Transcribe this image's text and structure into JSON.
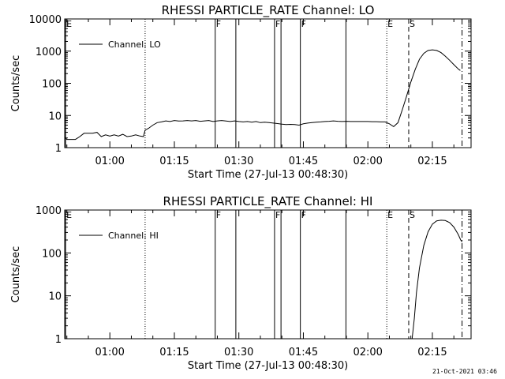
{
  "footer_timestamp": "21-Oct-2021 03:46",
  "chart_data": [
    {
      "type": "line",
      "title": "RHESSI PARTICLE_RATE Channel: LO",
      "xlabel": "Start Time (27-Jul-13 00:48:30)",
      "ylabel": "Counts/sec",
      "yscale": "log",
      "ylim": [
        1,
        10000
      ],
      "xlim": [
        49.5,
        144
      ],
      "x_tick_labels": [
        "01:00",
        "01:15",
        "01:30",
        "01:45",
        "02:00",
        "02:15"
      ],
      "y_tick_labels": [
        "1",
        "10",
        "100",
        "1000",
        "10000"
      ],
      "legend": {
        "label": "Channel: LO",
        "position": "top-left"
      },
      "series": [
        {
          "name": "Channel: LO",
          "points": [
            [
              49.5,
              2.2
            ],
            [
              50,
              1.8
            ],
            [
              51,
              1.8
            ],
            [
              52,
              1.8
            ],
            [
              53,
              2.2
            ],
            [
              54,
              2.8
            ],
            [
              55,
              2.8
            ],
            [
              56,
              2.8
            ],
            [
              57,
              3
            ],
            [
              58,
              2.2
            ],
            [
              59,
              2.5
            ],
            [
              60,
              2.3
            ],
            [
              61,
              2.5
            ],
            [
              62,
              2.3
            ],
            [
              63,
              2.6
            ],
            [
              64,
              2.2
            ],
            [
              65,
              2.3
            ],
            [
              66,
              2.5
            ],
            [
              67,
              2.3
            ],
            [
              67.8,
              2.2
            ],
            [
              68.2,
              3.5
            ],
            [
              69,
              4
            ],
            [
              70,
              5
            ],
            [
              71,
              6
            ],
            [
              72,
              6.3
            ],
            [
              73,
              6.8
            ],
            [
              74,
              6.5
            ],
            [
              75,
              7
            ],
            [
              76,
              6.7
            ],
            [
              77,
              6.8
            ],
            [
              78,
              7
            ],
            [
              79,
              6.8
            ],
            [
              80,
              7
            ],
            [
              81,
              6.6
            ],
            [
              82,
              6.8
            ],
            [
              83,
              7
            ],
            [
              84,
              6.5
            ],
            [
              85,
              6.8
            ],
            [
              86,
              7
            ],
            [
              87,
              6.7
            ],
            [
              88,
              6.5
            ],
            [
              89,
              6.8
            ],
            [
              90,
              6.5
            ],
            [
              91,
              6.3
            ],
            [
              92,
              6.5
            ],
            [
              93,
              6.2
            ],
            [
              94,
              6.5
            ],
            [
              95,
              6
            ],
            [
              96,
              6.2
            ],
            [
              97,
              6
            ],
            [
              98,
              5.8
            ],
            [
              99,
              5.6
            ],
            [
              100,
              5.4
            ],
            [
              101,
              5.2
            ],
            [
              102,
              5.3
            ],
            [
              103,
              5.2
            ],
            [
              104,
              5
            ],
            [
              105,
              5.5
            ],
            [
              106,
              5.8
            ],
            [
              107,
              6
            ],
            [
              108,
              6.2
            ],
            [
              109,
              6.3
            ],
            [
              110,
              6.5
            ],
            [
              111,
              6.6
            ],
            [
              112,
              6.8
            ],
            [
              113,
              6.6
            ],
            [
              114,
              6.5
            ],
            [
              115,
              6.6
            ],
            [
              116,
              6.5
            ],
            [
              117,
              6.5
            ],
            [
              118,
              6.5
            ],
            [
              119,
              6.5
            ],
            [
              120,
              6.5
            ],
            [
              121,
              6.4
            ],
            [
              122,
              6.4
            ],
            [
              123,
              6.3
            ],
            [
              124,
              6.3
            ],
            [
              125,
              5.5
            ],
            [
              126,
              4.5
            ],
            [
              127,
              6
            ],
            [
              128,
              15
            ],
            [
              129,
              40
            ],
            [
              130,
              110
            ],
            [
              131,
              270
            ],
            [
              132,
              560
            ],
            [
              133,
              850
            ],
            [
              134,
              1050
            ],
            [
              135,
              1100
            ],
            [
              136,
              1050
            ],
            [
              137,
              900
            ],
            [
              138,
              700
            ],
            [
              139,
              520
            ],
            [
              140,
              380
            ],
            [
              141,
              280
            ],
            [
              141.5,
              250
            ]
          ]
        }
      ],
      "event_lines": [
        {
          "label": "E",
          "x": 49.7,
          "style": "solid"
        },
        {
          "label": "",
          "x": 68.2,
          "style": "dotted"
        },
        {
          "label": "F",
          "x": 84.5,
          "style": "solid"
        },
        {
          "label": "",
          "x": 89.3,
          "style": "solid"
        },
        {
          "label": "F",
          "x": 98.3,
          "style": "solid"
        },
        {
          "label": "",
          "x": 99.8,
          "style": "solid"
        },
        {
          "label": "F",
          "x": 104.3,
          "style": "solid"
        },
        {
          "label": "",
          "x": 114.9,
          "style": "solid"
        },
        {
          "label": "E",
          "x": 124.4,
          "style": "dotted"
        },
        {
          "label": "S",
          "x": 129.5,
          "style": "dashed"
        },
        {
          "label": "",
          "x": 141.9,
          "style": "dashdot"
        }
      ]
    },
    {
      "type": "line",
      "title": "RHESSI PARTICLE_RATE Channel: HI",
      "xlabel": "Start Time (27-Jul-13 00:48:30)",
      "ylabel": "Counts/sec",
      "yscale": "log",
      "ylim": [
        1,
        1000
      ],
      "xlim": [
        49.5,
        144
      ],
      "x_tick_labels": [
        "01:00",
        "01:15",
        "01:30",
        "01:45",
        "02:00",
        "02:15"
      ],
      "y_tick_labels": [
        "1",
        "10",
        "100",
        "1000"
      ],
      "legend": {
        "label": "Channel: HI",
        "position": "top-left"
      },
      "series": [
        {
          "name": "Channel: HI",
          "points": [
            [
              130.3,
              1
            ],
            [
              130.8,
              3
            ],
            [
              131.3,
              12
            ],
            [
              132,
              45
            ],
            [
              133,
              150
            ],
            [
              134,
              310
            ],
            [
              135,
              470
            ],
            [
              136,
              560
            ],
            [
              137,
              580
            ],
            [
              138,
              570
            ],
            [
              139,
              510
            ],
            [
              140,
              400
            ],
            [
              141,
              270
            ],
            [
              141.6,
              200
            ],
            [
              141.9,
              180
            ]
          ]
        }
      ],
      "event_lines": [
        {
          "label": "E",
          "x": 49.7,
          "style": "solid"
        },
        {
          "label": "",
          "x": 68.2,
          "style": "dotted"
        },
        {
          "label": "F",
          "x": 84.5,
          "style": "solid"
        },
        {
          "label": "",
          "x": 89.3,
          "style": "solid"
        },
        {
          "label": "F",
          "x": 98.3,
          "style": "solid"
        },
        {
          "label": "",
          "x": 99.8,
          "style": "solid"
        },
        {
          "label": "F",
          "x": 104.3,
          "style": "solid"
        },
        {
          "label": "",
          "x": 114.9,
          "style": "solid"
        },
        {
          "label": "E",
          "x": 124.4,
          "style": "dotted"
        },
        {
          "label": "S",
          "x": 129.5,
          "style": "dashed"
        },
        {
          "label": "",
          "x": 141.9,
          "style": "dashdot"
        }
      ]
    }
  ]
}
